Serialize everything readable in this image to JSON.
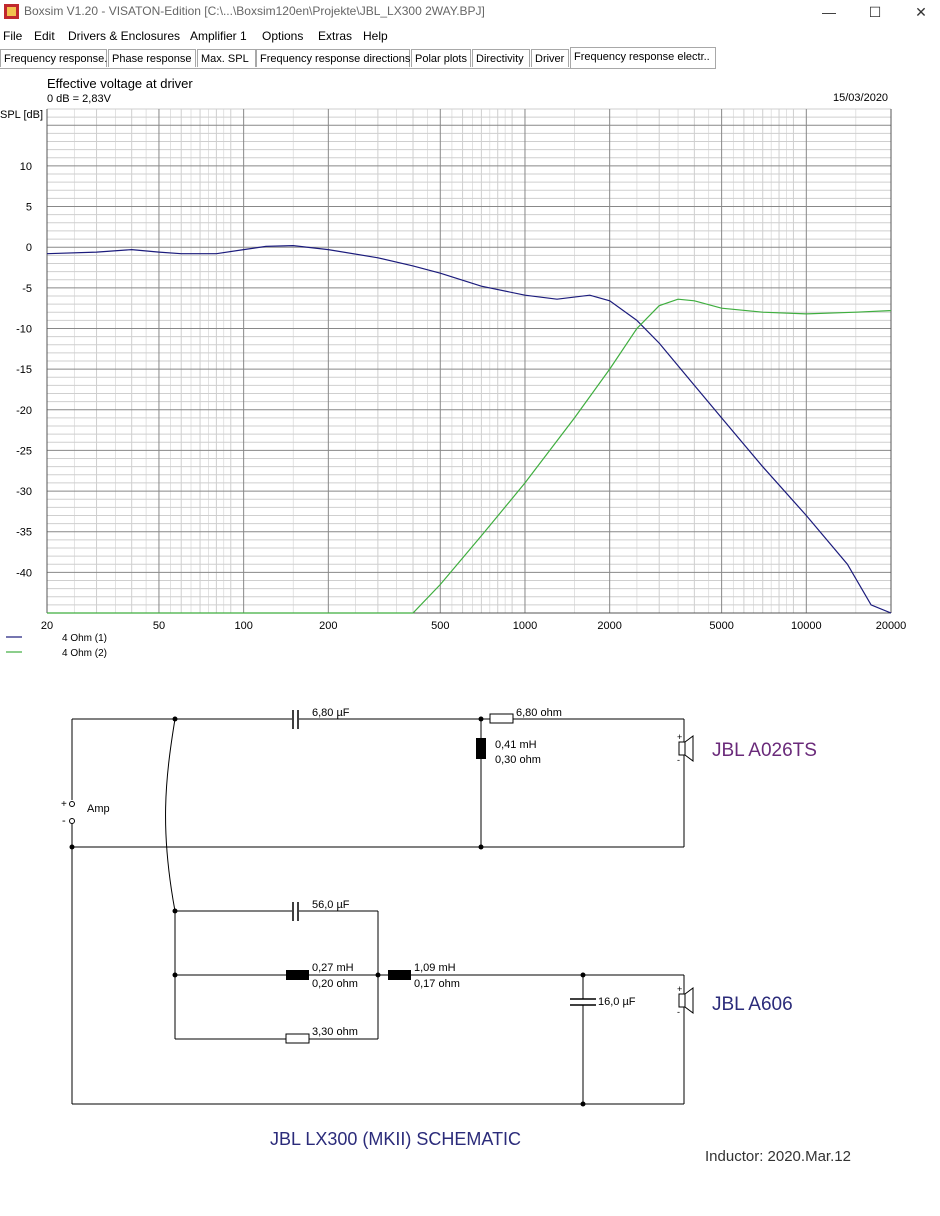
{
  "window": {
    "title": "Boxsim V1.20 - VISATON-Edition [C:\\...\\Boxsim120en\\Projekte\\JBL_LX300 2WAY.BPJ]",
    "minimize": "—",
    "maximize": "☐",
    "close": "✕"
  },
  "menu": [
    "File",
    "Edit",
    "Drivers & Enclosures",
    "Amplifier 1",
    "Options",
    "Extras",
    "Help"
  ],
  "tabs": [
    "Frequency response.",
    "Phase response",
    "Max. SPL",
    "Frequency response directions",
    "Polar plots",
    "Directivity",
    "Driver",
    "Frequency response electr.."
  ],
  "active_tab": 7,
  "chart_header": {
    "title": "Effective voltage at driver",
    "subtitle": "0 dB = 2,83V",
    "date": "15/03/2020"
  },
  "chart_data": {
    "type": "line",
    "ylabel": "SPL [dB]",
    "x_scale": "log",
    "xlim": [
      20,
      20000
    ],
    "ylim": [
      -45,
      17
    ],
    "x_ticks": [
      20,
      50,
      100,
      200,
      500,
      1000,
      2000,
      5000,
      10000,
      20000
    ],
    "y_ticks": [
      10,
      5,
      0,
      -5,
      -10,
      -15,
      -20,
      -25,
      -30,
      -35,
      -40
    ],
    "grid": true,
    "series": [
      {
        "name": "4 Ohm (1)",
        "color": "#1b1b7c",
        "points": [
          [
            20,
            -0.8
          ],
          [
            30,
            -0.6
          ],
          [
            40,
            -0.3
          ],
          [
            50,
            -0.6
          ],
          [
            60,
            -0.8
          ],
          [
            80,
            -0.8
          ],
          [
            100,
            -0.3
          ],
          [
            120,
            0.1
          ],
          [
            150,
            0.2
          ],
          [
            200,
            -0.3
          ],
          [
            300,
            -1.3
          ],
          [
            400,
            -2.3
          ],
          [
            500,
            -3.2
          ],
          [
            700,
            -4.8
          ],
          [
            1000,
            -5.9
          ],
          [
            1300,
            -6.4
          ],
          [
            1700,
            -5.9
          ],
          [
            2000,
            -6.6
          ],
          [
            2500,
            -9.0
          ],
          [
            3000,
            -11.8
          ],
          [
            4000,
            -17
          ],
          [
            5000,
            -21
          ],
          [
            7000,
            -27
          ],
          [
            10000,
            -33
          ],
          [
            14000,
            -39
          ],
          [
            17000,
            -44
          ],
          [
            20000,
            -45
          ]
        ]
      },
      {
        "name": "4 Ohm (2)",
        "color": "#3fae3f",
        "points": [
          [
            20,
            -45
          ],
          [
            400,
            -45
          ],
          [
            500,
            -41.5
          ],
          [
            700,
            -35.5
          ],
          [
            1000,
            -29
          ],
          [
            1500,
            -21
          ],
          [
            2000,
            -15
          ],
          [
            2500,
            -10
          ],
          [
            3000,
            -7.2
          ],
          [
            3500,
            -6.4
          ],
          [
            4000,
            -6.6
          ],
          [
            5000,
            -7.5
          ],
          [
            7000,
            -8
          ],
          [
            10000,
            -8.2
          ],
          [
            15000,
            -8
          ],
          [
            20000,
            -7.8
          ]
        ]
      }
    ]
  },
  "schematic": {
    "amp_label": "Amp",
    "plus": "+",
    "minus": "-",
    "tweeter": {
      "cap": "6,80 µF",
      "resistor": "6,80 ohm",
      "inductor_l": "0,41 mH",
      "inductor_r": "0,30 ohm",
      "driver": "JBL A026TS"
    },
    "woofer": {
      "cap": "56,0 µF",
      "inductor1_l": "0,27 mH",
      "inductor1_r": "0,20 ohm",
      "resistor": "3,30 ohm",
      "inductor2_l": "1,09 mH",
      "inductor2_r": "0,17 ohm",
      "shunt_cap": "16,0 µF",
      "driver": "JBL A606"
    },
    "caption": "JBL LX300 (MKII) SCHEMATIC",
    "note": "Inductor: 2020.Mar.12"
  },
  "colors": {
    "driver_tweeter": "#6a2a7a",
    "driver_woofer": "#2b2b7a",
    "caption": "#2b2b7a",
    "grid_major": "#888888",
    "grid_minor": "#cfcfcf"
  }
}
